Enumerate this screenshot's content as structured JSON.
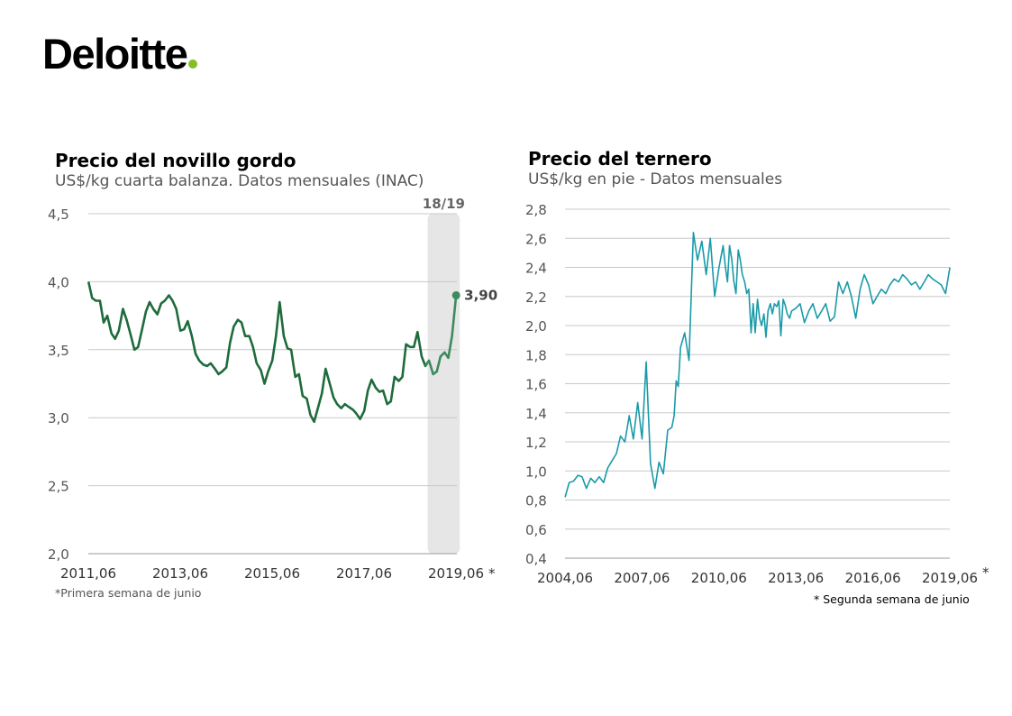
{
  "brand": {
    "name": "Deloitte",
    "dot_color": "#86BC25"
  },
  "chart_data": [
    {
      "type": "line",
      "title": "Precio del novillo gordo",
      "subtitle": "US$/kg cuarta balanza. Datos mensuales (INAC)",
      "note": "*Primera semana de junio",
      "y_ticks": [
        "2,0",
        "2,5",
        "3,0",
        "3,5",
        "4,0",
        "4,5"
      ],
      "x_ticks": [
        "2011,06",
        "2013,06",
        "2015,06",
        "2017,06",
        "2019,06"
      ],
      "x_tick_suffix": "*",
      "ylim": [
        2.0,
        4.5
      ],
      "xlim": [
        2011.4167,
        2019.4167
      ],
      "grid": true,
      "highlight": {
        "label": "18/19",
        "from": 2018.8,
        "to": 2019.5
      },
      "end_label": "3,90",
      "line_color": "#1E6B3C",
      "highlight_line_color": "#3E8A5E",
      "series": [
        {
          "x": [
            2011.42,
            2011.5,
            2011.58,
            2011.67,
            2011.75,
            2011.83,
            2011.92,
            2012.0,
            2012.08,
            2012.17,
            2012.25,
            2012.33,
            2012.42,
            2012.5,
            2012.58,
            2012.67,
            2012.75,
            2012.83,
            2012.92,
            2013.0,
            2013.08,
            2013.17,
            2013.25,
            2013.33,
            2013.42,
            2013.5,
            2013.58,
            2013.67,
            2013.75,
            2013.83,
            2013.92,
            2014.0,
            2014.08,
            2014.17,
            2014.25,
            2014.33,
            2014.42,
            2014.5,
            2014.58,
            2014.67,
            2014.75,
            2014.83,
            2014.92,
            2015.0,
            2015.08,
            2015.17,
            2015.25,
            2015.33,
            2015.42,
            2015.5,
            2015.58,
            2015.67,
            2015.75,
            2015.83,
            2015.92,
            2016.0,
            2016.08,
            2016.17,
            2016.25,
            2016.33,
            2016.42,
            2016.5,
            2016.58,
            2016.67,
            2016.75,
            2016.83,
            2016.92,
            2017.0,
            2017.08,
            2017.17,
            2017.25,
            2017.33,
            2017.42,
            2017.5,
            2017.58,
            2017.67,
            2017.75,
            2017.83,
            2017.92,
            2018.0,
            2018.08,
            2018.17,
            2018.25,
            2018.33,
            2018.42,
            2018.5,
            2018.58,
            2018.67,
            2018.75,
            2018.83,
            2018.92,
            2019.0,
            2019.08,
            2019.17,
            2019.25,
            2019.33,
            2019.42
          ],
          "y": [
            4.0,
            3.88,
            3.86,
            3.86,
            3.7,
            3.75,
            3.62,
            3.58,
            3.64,
            3.8,
            3.72,
            3.62,
            3.5,
            3.52,
            3.64,
            3.78,
            3.85,
            3.8,
            3.76,
            3.84,
            3.86,
            3.9,
            3.86,
            3.8,
            3.64,
            3.65,
            3.71,
            3.6,
            3.47,
            3.42,
            3.39,
            3.38,
            3.4,
            3.36,
            3.32,
            3.34,
            3.37,
            3.55,
            3.67,
            3.72,
            3.7,
            3.6,
            3.6,
            3.52,
            3.4,
            3.35,
            3.25,
            3.34,
            3.42,
            3.6,
            3.85,
            3.6,
            3.51,
            3.5,
            3.3,
            3.32,
            3.16,
            3.14,
            3.02,
            2.97,
            3.08,
            3.18,
            3.36,
            3.25,
            3.15,
            3.1,
            3.07,
            3.1,
            3.08,
            3.06,
            3.03,
            2.99,
            3.05,
            3.2,
            3.28,
            3.22,
            3.19,
            3.2,
            3.1,
            3.12,
            3.3,
            3.27,
            3.3,
            3.54,
            3.52,
            3.52,
            3.63,
            3.45,
            3.38,
            3.42,
            3.32,
            3.34,
            3.45,
            3.48,
            3.44,
            3.6,
            3.9
          ]
        }
      ]
    },
    {
      "type": "line",
      "title": "Precio del ternero",
      "subtitle": "US$/kg en pie - Datos mensuales",
      "note": "* Segunda semana de junio",
      "y_ticks": [
        "0,4",
        "0,6",
        "0,8",
        "1,0",
        "1,2",
        "1,4",
        "1,6",
        "1,8",
        "2,0",
        "2,2",
        "2,4",
        "2,6",
        "2,8"
      ],
      "x_ticks": [
        "2004,06",
        "2007,06",
        "2010,06",
        "2013,06",
        "2016,06",
        "2019,06"
      ],
      "x_tick_suffix": "*",
      "ylim": [
        0.4,
        2.8
      ],
      "xlim": [
        2004.4167,
        2019.4167
      ],
      "grid": true,
      "line_color": "#1A9AA8",
      "series": [
        {
          "x": [
            2004.42,
            2004.58,
            2004.75,
            2004.92,
            2005.08,
            2005.25,
            2005.42,
            2005.58,
            2005.75,
            2005.92,
            2006.08,
            2006.25,
            2006.42,
            2006.58,
            2006.75,
            2006.92,
            2007.08,
            2007.25,
            2007.42,
            2007.58,
            2007.75,
            2007.92,
            2008.08,
            2008.25,
            2008.42,
            2008.58,
            2008.67,
            2008.75,
            2008.83,
            2008.92,
            2009.08,
            2009.25,
            2009.42,
            2009.58,
            2009.75,
            2009.92,
            2010.08,
            2010.25,
            2010.42,
            2010.58,
            2010.67,
            2010.75,
            2010.83,
            2010.92,
            2011.0,
            2011.08,
            2011.17,
            2011.25,
            2011.33,
            2011.42,
            2011.5,
            2011.58,
            2011.67,
            2011.75,
            2011.83,
            2011.92,
            2012.0,
            2012.08,
            2012.17,
            2012.25,
            2012.33,
            2012.42,
            2012.5,
            2012.58,
            2012.67,
            2012.75,
            2012.83,
            2012.92,
            2013.0,
            2013.08,
            2013.17,
            2013.25,
            2013.42,
            2013.58,
            2013.75,
            2013.92,
            2014.08,
            2014.25,
            2014.42,
            2014.58,
            2014.75,
            2014.92,
            2015.08,
            2015.25,
            2015.42,
            2015.58,
            2015.75,
            2015.92,
            2016.08,
            2016.25,
            2016.42,
            2016.58,
            2016.75,
            2016.92,
            2017.08,
            2017.25,
            2017.42,
            2017.58,
            2017.75,
            2017.92,
            2018.08,
            2018.25,
            2018.42,
            2018.58,
            2018.75,
            2018.92,
            2019.08,
            2019.25,
            2019.42
          ],
          "y": [
            0.82,
            0.92,
            0.93,
            0.97,
            0.96,
            0.88,
            0.95,
            0.92,
            0.96,
            0.92,
            1.02,
            1.07,
            1.12,
            1.24,
            1.2,
            1.38,
            1.22,
            1.47,
            1.22,
            1.75,
            1.05,
            0.88,
            1.06,
            0.98,
            1.28,
            1.3,
            1.38,
            1.62,
            1.58,
            1.85,
            1.95,
            1.76,
            2.64,
            2.45,
            2.58,
            2.35,
            2.6,
            2.2,
            2.4,
            2.55,
            2.4,
            2.3,
            2.55,
            2.45,
            2.3,
            2.22,
            2.52,
            2.45,
            2.35,
            2.3,
            2.22,
            2.25,
            1.95,
            2.15,
            1.95,
            2.18,
            2.05,
            2.0,
            2.08,
            1.92,
            2.1,
            2.15,
            2.08,
            2.15,
            2.13,
            2.17,
            1.93,
            2.18,
            2.14,
            2.08,
            2.05,
            2.1,
            2.12,
            2.15,
            2.02,
            2.1,
            2.15,
            2.05,
            2.1,
            2.15,
            2.03,
            2.06,
            2.3,
            2.22,
            2.3,
            2.2,
            2.05,
            2.25,
            2.35,
            2.28,
            2.15,
            2.2,
            2.25,
            2.22,
            2.28,
            2.32,
            2.3,
            2.35,
            2.32,
            2.28,
            2.3,
            2.25,
            2.3,
            2.35,
            2.32,
            2.3,
            2.28,
            2.22,
            2.4
          ]
        }
      ]
    }
  ]
}
